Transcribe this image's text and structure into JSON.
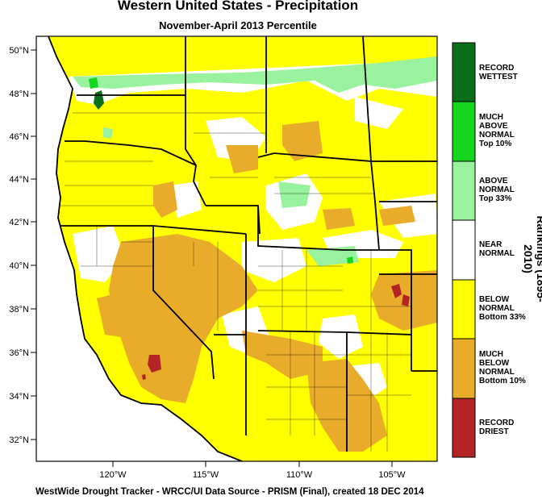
{
  "title": "Western United States - Precipitation",
  "subtitle": "November-April 2013 Percentile",
  "footer": "WestWide Drought Tracker - WRCC/UI  Data Source - PRISM (Final), created 18 DEC 2014",
  "legend_title": "Rankings (1895-2010)",
  "legend": [
    {
      "lines": [
        "RECORD",
        "WETTEST"
      ],
      "color": "#0b6e1b"
    },
    {
      "lines": [
        "MUCH",
        "ABOVE",
        "NORMAL",
        "Top 10%"
      ],
      "color": "#14d61c"
    },
    {
      "lines": [
        "ABOVE",
        "NORMAL",
        "Top 33%"
      ],
      "color": "#99f29e"
    },
    {
      "lines": [
        "NEAR",
        "NORMAL"
      ],
      "color": "#ffffff"
    },
    {
      "lines": [
        "BELOW",
        "NORMAL",
        "Bottom 33%"
      ],
      "color": "#ffff00"
    },
    {
      "lines": [
        "MUCH",
        "BELOW",
        "NORMAL",
        "Bottom 10%"
      ],
      "color": "#e9ac2a"
    },
    {
      "lines": [
        "RECORD",
        "DRIEST"
      ],
      "color": "#b42424"
    }
  ],
  "lat_labels": [
    "50°N",
    "48°N",
    "46°N",
    "44°N",
    "42°N",
    "40°N",
    "38°N",
    "36°N",
    "34°N",
    "32°N"
  ],
  "lon_labels": [
    "120°W",
    "115°W",
    "110°W",
    "105°W"
  ],
  "colors": {
    "ocean": "#ffffff",
    "border": "#000000"
  }
}
